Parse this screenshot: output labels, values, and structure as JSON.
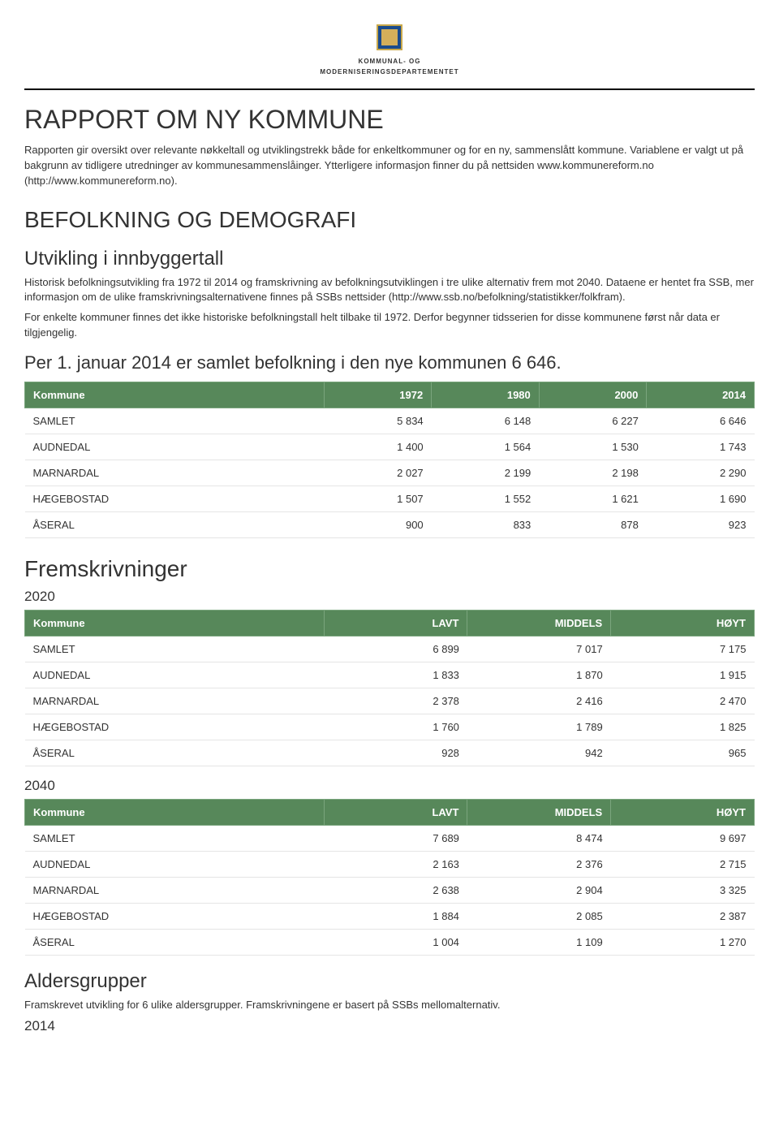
{
  "header": {
    "org_line1": "KOMMUNAL- OG",
    "org_line2": "MODERNISERINGSDEPARTEMENTET"
  },
  "title": "RAPPORT OM NY KOMMUNE",
  "intro_p1": "Rapporten gir oversikt over relevante nøkkeltall og utviklingstrekk både for enkeltkommuner og for en ny, sammenslått kommune. Variablene er valgt ut på bakgrunn av tidligere utredninger av kommunesammenslåinger. Ytterligere informasjon finner du på nettsiden www.kommunereform.no (http://www.kommunereform.no).",
  "section_demografi": {
    "heading": "BEFOLKNING OG DEMOGRAFI",
    "sub_heading": "Utvikling i innbyggertall",
    "p1": "Historisk befolkningsutvikling fra 1972 til 2014 og framskrivning av befolkningsutviklingen i tre ulike alternativ frem mot 2040. Dataene er hentet fra SSB, mer informasjon om de ulike framskrivningsalternativene finnes på SSBs nettsider (http://www.ssb.no/befolkning/statistikker/folkfram).",
    "p2": "For enkelte kommuner finnes det ikke historiske befolkningstall helt tilbake til 1972. Derfor begynner tidsserien for disse kommunene først når data er tilgjengelig.",
    "summary": "Per 1. januar 2014 er samlet befolkning i den nye kommunen 6 646."
  },
  "table_hist": {
    "columns": [
      "Kommune",
      "1972",
      "1980",
      "2000",
      "2014"
    ],
    "rows": [
      [
        "SAMLET",
        "5 834",
        "6 148",
        "6 227",
        "6 646"
      ],
      [
        "AUDNEDAL",
        "1 400",
        "1 564",
        "1 530",
        "1 743"
      ],
      [
        "MARNARDAL",
        "2 027",
        "2 199",
        "2 198",
        "2 290"
      ],
      [
        "HÆGEBOSTAD",
        "1 507",
        "1 552",
        "1 621",
        "1 690"
      ],
      [
        "ÅSERAL",
        "900",
        "833",
        "878",
        "923"
      ]
    ]
  },
  "fremskriv_heading": "Fremskrivninger",
  "year_2020": "2020",
  "table_2020": {
    "columns": [
      "Kommune",
      "LAVT",
      "MIDDELS",
      "HØYT"
    ],
    "rows": [
      [
        "SAMLET",
        "6 899",
        "7 017",
        "7 175"
      ],
      [
        "AUDNEDAL",
        "1 833",
        "1 870",
        "1 915"
      ],
      [
        "MARNARDAL",
        "2 378",
        "2 416",
        "2 470"
      ],
      [
        "HÆGEBOSTAD",
        "1 760",
        "1 789",
        "1 825"
      ],
      [
        "ÅSERAL",
        "928",
        "942",
        "965"
      ]
    ]
  },
  "year_2040": "2040",
  "table_2040": {
    "columns": [
      "Kommune",
      "LAVT",
      "MIDDELS",
      "HØYT"
    ],
    "rows": [
      [
        "SAMLET",
        "7 689",
        "8 474",
        "9 697"
      ],
      [
        "AUDNEDAL",
        "2 163",
        "2 376",
        "2 715"
      ],
      [
        "MARNARDAL",
        "2 638",
        "2 904",
        "3 325"
      ],
      [
        "HÆGEBOSTAD",
        "1 884",
        "2 085",
        "2 387"
      ],
      [
        "ÅSERAL",
        "1 004",
        "1 109",
        "1 270"
      ]
    ]
  },
  "alder_heading": "Aldersgrupper",
  "alder_p": "Framskrevet utvikling for 6 ulike aldersgrupper. Framskrivningene er basert på SSBs mellomalternativ.",
  "year_2014": "2014",
  "style": {
    "header_bg": "#57885a",
    "header_text": "#ffffff",
    "row_border": "#e5e5e5",
    "body_text": "#333333",
    "font_size_body": 13,
    "font_size_h1": 32,
    "font_size_h2": 28,
    "font_size_h3": 24,
    "font_size_summary": 22
  }
}
